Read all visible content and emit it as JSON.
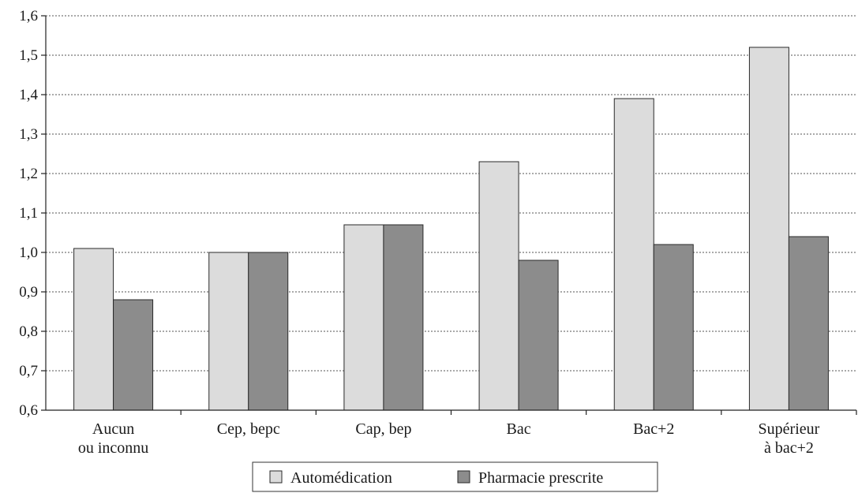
{
  "chart_data": {
    "type": "bar",
    "categories": [
      [
        "Aucun",
        "ou inconnu"
      ],
      [
        "Cep, bepc"
      ],
      [
        "Cap, bep"
      ],
      [
        "Bac"
      ],
      [
        "Bac+2"
      ],
      [
        "Supérieur",
        "à bac+2"
      ]
    ],
    "series": [
      {
        "name": "Automédication",
        "values": [
          1.01,
          1.0,
          1.07,
          1.23,
          1.39,
          1.52
        ],
        "color": "#dcdcdc"
      },
      {
        "name": "Pharmacie prescrite",
        "values": [
          0.88,
          1.0,
          1.07,
          0.98,
          1.02,
          1.04
        ],
        "color": "#8c8c8c"
      }
    ],
    "ylim": [
      0.6,
      1.6
    ],
    "yticks": [
      "0,6",
      "0,7",
      "0,8",
      "0,9",
      "1,0",
      "1,1",
      "1,2",
      "1,3",
      "1,4",
      "1,5",
      "1,6"
    ],
    "grid": true,
    "legend_position": "bottom-center",
    "title": "",
    "xlabel": "",
    "ylabel": ""
  }
}
